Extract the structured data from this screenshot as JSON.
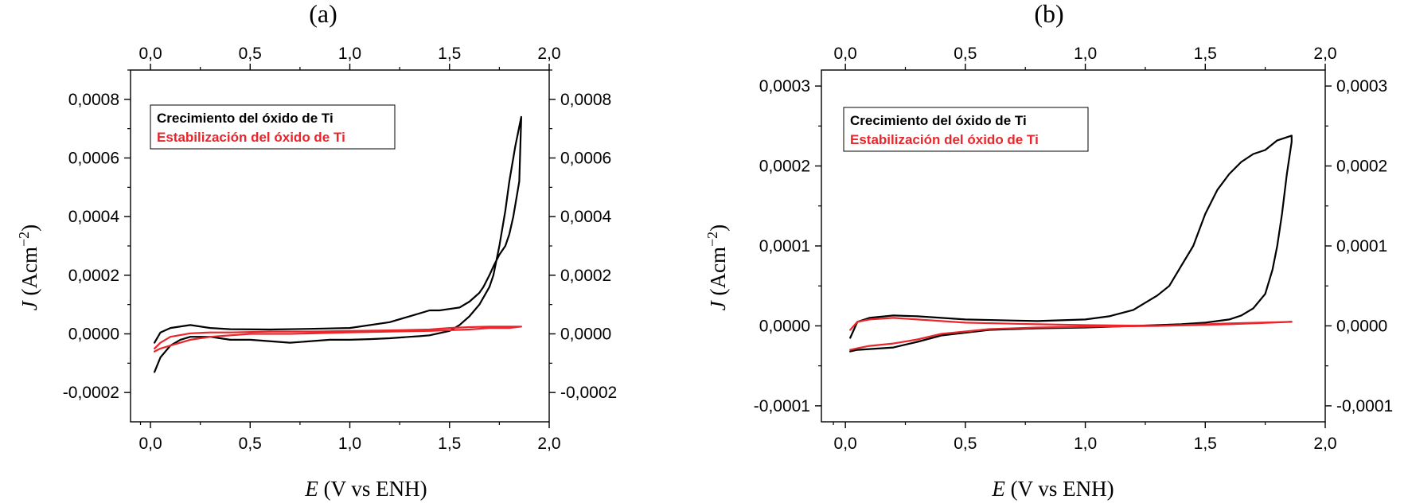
{
  "colors": {
    "series_black": "#000000",
    "series_red": "#e8262b",
    "axis": "#000000"
  },
  "chart_data": [
    {
      "type": "line",
      "panel_label": "(a)",
      "xlabel_var": "E",
      "xlabel_unit": "(V vs ENH)",
      "ylabel_var": "J",
      "ylabel_unit": "(Acm",
      "ylabel_exp": "−2",
      "ylabel_close": ")",
      "xlim": [
        -0.1,
        2.0
      ],
      "ylim": [
        -0.0003,
        0.0009
      ],
      "x_ticks": [
        "0,0",
        "0,5",
        "1,0",
        "1,5",
        "2,0"
      ],
      "x_tick_values": [
        0,
        0.5,
        1.0,
        1.5,
        2.0
      ],
      "y_ticks": [
        "-0,0002",
        "0,0000",
        "0,0002",
        "0,0004",
        "0,0006",
        "0,0008"
      ],
      "y_tick_values": [
        -0.0002,
        0,
        0.0002,
        0.0004,
        0.0006,
        0.0008
      ],
      "legend": [
        "Crecimiento del óxido de Ti",
        "Estabilización del óxido de Ti"
      ],
      "series": [
        {
          "name": "Crecimiento del óxido de Ti",
          "color": "#000000",
          "x": [
            0.02,
            0.05,
            0.1,
            0.15,
            0.2,
            0.3,
            0.4,
            0.5,
            0.7,
            0.9,
            1.0,
            1.1,
            1.2,
            1.3,
            1.35,
            1.4,
            1.5,
            1.55,
            1.6,
            1.65,
            1.7,
            1.72,
            1.75,
            1.78,
            1.8,
            1.83,
            1.86,
            1.85,
            1.82,
            1.8,
            1.78,
            1.75,
            1.72,
            1.7,
            1.67,
            1.65,
            1.6,
            1.55,
            1.5,
            1.45,
            1.4,
            1.3,
            1.2,
            1.0,
            0.8,
            0.6,
            0.4,
            0.3,
            0.2,
            0.1,
            0.05,
            0.02
          ],
          "y": [
            -0.00013,
            -8e-05,
            -4e-05,
            -2e-05,
            -1e-05,
            -1e-05,
            -2e-05,
            -2e-05,
            -3e-05,
            -2e-05,
            -2e-05,
            -1.8e-05,
            -1.5e-05,
            -1e-05,
            -8e-06,
            -5e-06,
            1e-05,
            3e-05,
            6e-05,
            0.0001,
            0.00016,
            0.0002,
            0.0003,
            0.00042,
            0.00052,
            0.00064,
            0.00074,
            0.00052,
            0.0004,
            0.00034,
            0.0003,
            0.00027,
            0.00023,
            0.0002,
            0.00016,
            0.00014,
            0.00011,
            9e-05,
            8.5e-05,
            8e-05,
            8e-05,
            6e-05,
            4e-05,
            2e-05,
            1.7e-05,
            1.5e-05,
            1.6e-05,
            2e-05,
            3e-05,
            2e-05,
            5e-06,
            -3e-05
          ]
        },
        {
          "name": "Estabilización del óxido de Ti",
          "color": "#e8262b",
          "x": [
            0.02,
            0.05,
            0.1,
            0.15,
            0.2,
            0.3,
            0.5,
            0.7,
            1.0,
            1.2,
            1.4,
            1.6,
            1.7,
            1.8,
            1.86,
            1.8,
            1.7,
            1.6,
            1.5,
            1.4,
            1.2,
            1.0,
            0.8,
            0.6,
            0.4,
            0.3,
            0.2,
            0.1,
            0.05,
            0.02
          ],
          "y": [
            -6e-05,
            -5e-05,
            -4e-05,
            -3e-05,
            -2e-05,
            -1e-05,
            0.0,
            0.0,
            5e-06,
            8e-06,
            1e-05,
            1.5e-05,
            2e-05,
            2e-05,
            2.5e-05,
            2.5e-05,
            2.5e-05,
            2.3e-05,
            2e-05,
            1.5e-05,
            1.2e-05,
            1e-05,
            8e-06,
            8e-06,
            5e-06,
            5e-06,
            2e-06,
            -1e-05,
            -3e-05,
            -5e-05
          ]
        }
      ]
    },
    {
      "type": "line",
      "panel_label": "(b)",
      "xlabel_var": "E",
      "xlabel_unit": "(V vs ENH)",
      "ylabel_var": "J",
      "ylabel_unit": "(Acm",
      "ylabel_exp": "−2",
      "ylabel_close": ")",
      "xlim": [
        -0.1,
        2.0
      ],
      "ylim": [
        -0.00012,
        0.00032
      ],
      "x_ticks": [
        "0,0",
        "0,5",
        "1,0",
        "1,5",
        "2,0"
      ],
      "x_tick_values": [
        0,
        0.5,
        1.0,
        1.5,
        2.0
      ],
      "y_ticks": [
        "-0,0001",
        "0,0000",
        "0,0001",
        "0,0002",
        "0,0003"
      ],
      "y_tick_values": [
        -0.0001,
        0,
        0.0001,
        0.0002,
        0.0003
      ],
      "legend": [
        "Crecimiento del óxido de Ti",
        "Estabilización del óxido de Ti"
      ],
      "series": [
        {
          "name": "Crecimiento del óxido de Ti",
          "color": "#000000",
          "x": [
            0.02,
            0.05,
            0.1,
            0.2,
            0.3,
            0.5,
            0.8,
            1.0,
            1.1,
            1.2,
            1.3,
            1.35,
            1.4,
            1.45,
            1.5,
            1.55,
            1.6,
            1.65,
            1.7,
            1.75,
            1.8,
            1.86,
            1.86,
            1.84,
            1.82,
            1.8,
            1.78,
            1.75,
            1.7,
            1.65,
            1.6,
            1.55,
            1.5,
            1.4,
            1.3,
            1.2,
            1.0,
            0.8,
            0.6,
            0.4,
            0.3,
            0.2,
            0.1,
            0.05,
            0.02
          ],
          "y": [
            -1.5e-05,
            5e-06,
            1e-05,
            1.3e-05,
            1.2e-05,
            8e-06,
            6e-06,
            8e-06,
            1.2e-05,
            2e-05,
            3.8e-05,
            5e-05,
            7.5e-05,
            0.0001,
            0.00014,
            0.00017,
            0.00019,
            0.000205,
            0.000215,
            0.00022,
            0.000232,
            0.000238,
            0.00023,
            0.00019,
            0.00014,
            0.0001,
            7e-05,
            4e-05,
            2.2e-05,
            1.3e-05,
            8e-06,
            6e-06,
            4e-06,
            2e-06,
            1e-06,
            0.0,
            -2e-06,
            -3e-06,
            -5e-06,
            -1.2e-05,
            -2e-05,
            -2.7e-05,
            -2.9e-05,
            -3e-05,
            -3.2e-05
          ]
        },
        {
          "name": "Estabilización del óxido de Ti",
          "color": "#e8262b",
          "x": [
            0.02,
            0.05,
            0.1,
            0.2,
            0.3,
            0.5,
            0.8,
            1.0,
            1.3,
            1.6,
            1.86,
            1.6,
            1.3,
            1.0,
            0.8,
            0.6,
            0.4,
            0.3,
            0.2,
            0.1,
            0.05,
            0.02
          ],
          "y": [
            -5e-06,
            5e-06,
            8e-06,
            1e-05,
            8e-06,
            4e-06,
            2e-06,
            1e-06,
            0.0,
            2e-06,
            5e-06,
            3e-06,
            0.0,
            -1e-06,
            -2e-06,
            -4e-06,
            -1e-05,
            -1.7e-05,
            -2.2e-05,
            -2.5e-05,
            -2.8e-05,
            -3e-05
          ]
        }
      ]
    }
  ]
}
